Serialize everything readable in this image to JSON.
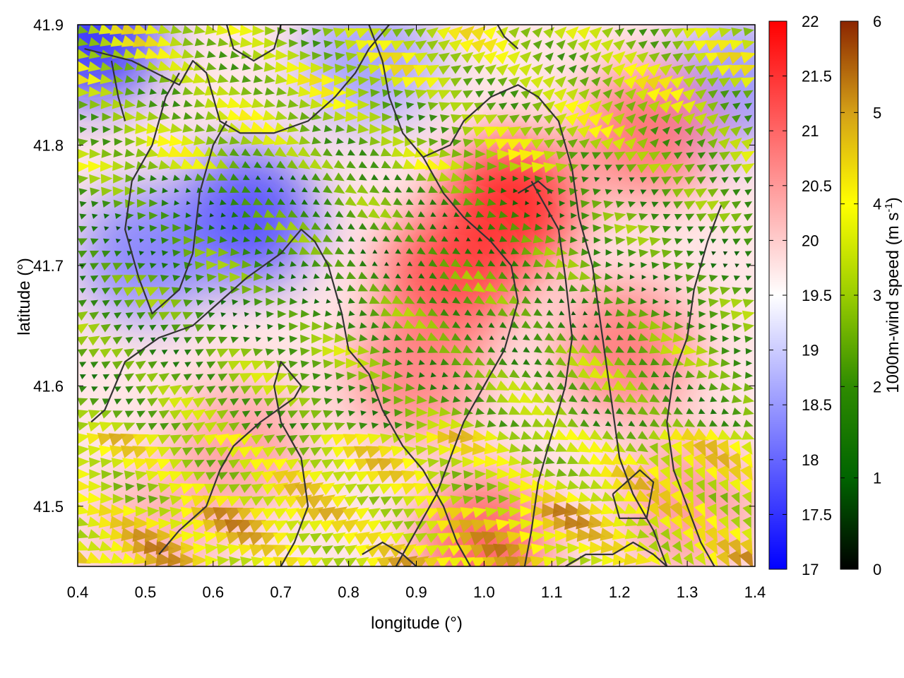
{
  "chart_data": {
    "type": "heatmap",
    "title": "",
    "xlabel": "longitude (°)",
    "ylabel": "latitude (°)",
    "xlim": [
      0.4,
      1.4
    ],
    "ylim": [
      41.45,
      41.9
    ],
    "x_ticks": [
      0.4,
      0.5,
      0.6,
      0.7,
      0.8,
      0.9,
      1.0,
      1.1,
      1.2,
      1.3,
      1.4
    ],
    "x_tick_labels": [
      "0.4",
      "0.5",
      "0.6",
      "0.7",
      "0.8",
      "0.9",
      "1.0",
      "1.1",
      "1.2",
      "1.3",
      "1.4"
    ],
    "y_ticks": [
      41.5,
      41.6,
      41.7,
      41.8,
      41.9
    ],
    "y_tick_labels": [
      "41.5",
      "41.6",
      "41.7",
      "41.8",
      "41.9"
    ],
    "grid": false,
    "temperature_colorbar": {
      "range": [
        17,
        22
      ],
      "ticks": [
        17,
        17.5,
        18,
        18.5,
        19,
        19.5,
        20,
        20.5,
        21,
        21.5,
        22
      ],
      "tick_labels": [
        "17",
        "17.5",
        "18",
        "18.5",
        "19",
        "19.5",
        "20",
        "20.5",
        "21",
        "21.5",
        "22"
      ],
      "colors": [
        "#0000ff",
        "#ffffff",
        "#ff0000"
      ],
      "label": ""
    },
    "wind_colorbar": {
      "range": [
        0,
        6
      ],
      "ticks": [
        0,
        1,
        2,
        3,
        4,
        5,
        6
      ],
      "tick_labels": [
        "0",
        "1",
        "2",
        "3",
        "4",
        "5",
        "6"
      ],
      "colors": [
        "#000000",
        "#006400",
        "#2e8b00",
        "#9acd00",
        "#ffff00",
        "#d4a017",
        "#8b2500"
      ],
      "label": "1000m-wind speed (m s",
      "label_superscript": "-1",
      "label_suffix": ")"
    },
    "temperature_hotspots": [
      {
        "lon": 0.42,
        "lat": 41.89,
        "value": 17.3
      },
      {
        "lon": 0.65,
        "lat": 41.74,
        "value": 17.6
      },
      {
        "lon": 0.5,
        "lat": 41.71,
        "value": 18.2
      },
      {
        "lon": 0.83,
        "lat": 41.87,
        "value": 18.5
      },
      {
        "lon": 1.37,
        "lat": 41.85,
        "value": 18.4
      },
      {
        "lon": 1.04,
        "lat": 41.75,
        "value": 21.9
      },
      {
        "lon": 0.95,
        "lat": 41.69,
        "value": 21.5
      },
      {
        "lon": 1.24,
        "lat": 41.81,
        "value": 21.0
      },
      {
        "lon": 1.21,
        "lat": 41.63,
        "value": 20.9
      },
      {
        "lon": 0.9,
        "lat": 41.61,
        "value": 20.8
      },
      {
        "lon": 0.64,
        "lat": 41.55,
        "value": 20.5
      },
      {
        "lon": 1.0,
        "lat": 41.47,
        "value": 21.2
      },
      {
        "lon": 0.52,
        "lat": 41.48,
        "value": 20.3
      },
      {
        "lon": 1.3,
        "lat": 41.5,
        "value": 20.6
      }
    ],
    "wind_bands": [
      {
        "lat_from": 41.45,
        "lat_to": 41.5,
        "speed": 4.1
      },
      {
        "lat_from": 41.5,
        "lat_to": 41.56,
        "speed": 3.6
      },
      {
        "lat_from": 41.56,
        "lat_to": 41.63,
        "speed": 2.4
      },
      {
        "lat_from": 41.63,
        "lat_to": 41.7,
        "speed": 2.0
      },
      {
        "lat_from": 41.7,
        "lat_to": 41.78,
        "speed": 1.9
      },
      {
        "lat_from": 41.78,
        "lat_to": 41.85,
        "speed": 2.9
      },
      {
        "lat_from": 41.85,
        "lat_to": 41.9,
        "speed": 3.2
      }
    ],
    "contours": [
      [
        [
          0.41,
          41.88
        ],
        [
          0.48,
          41.87
        ],
        [
          0.55,
          41.85
        ],
        [
          0.57,
          41.87
        ],
        [
          0.59,
          41.86
        ],
        [
          0.61,
          41.82
        ],
        [
          0.64,
          41.81
        ],
        [
          0.69,
          41.81
        ],
        [
          0.74,
          41.82
        ],
        [
          0.78,
          41.84
        ],
        [
          0.81,
          41.86
        ],
        [
          0.83,
          41.88
        ],
        [
          0.86,
          41.9
        ]
      ],
      [
        [
          0.55,
          41.86
        ],
        [
          0.53,
          41.84
        ],
        [
          0.51,
          41.8
        ],
        [
          0.48,
          41.77
        ],
        [
          0.47,
          41.73
        ],
        [
          0.49,
          41.69
        ],
        [
          0.51,
          41.66
        ],
        [
          0.55,
          41.68
        ],
        [
          0.57,
          41.71
        ],
        [
          0.58,
          41.76
        ],
        [
          0.6,
          41.8
        ],
        [
          0.62,
          41.82
        ]
      ],
      [
        [
          0.42,
          41.57
        ],
        [
          0.44,
          41.58
        ],
        [
          0.47,
          41.62
        ],
        [
          0.52,
          41.64
        ],
        [
          0.57,
          41.65
        ],
        [
          0.61,
          41.67
        ],
        [
          0.65,
          41.69
        ],
        [
          0.7,
          41.71
        ],
        [
          0.73,
          41.73
        ],
        [
          0.75,
          41.72
        ],
        [
          0.77,
          41.7
        ],
        [
          0.79,
          41.66
        ],
        [
          0.8,
          41.63
        ],
        [
          0.83,
          41.61
        ],
        [
          0.85,
          41.58
        ],
        [
          0.88,
          41.55
        ],
        [
          0.91,
          41.53
        ],
        [
          0.94,
          41.5
        ],
        [
          0.96,
          41.47
        ],
        [
          0.98,
          41.45
        ]
      ],
      [
        [
          0.52,
          41.46
        ],
        [
          0.55,
          41.48
        ],
        [
          0.59,
          41.5
        ],
        [
          0.61,
          41.53
        ],
        [
          0.63,
          41.55
        ],
        [
          0.67,
          41.57
        ],
        [
          0.72,
          41.59
        ],
        [
          0.73,
          41.6
        ],
        [
          0.7,
          41.62
        ],
        [
          0.69,
          41.6
        ],
        [
          0.7,
          41.57
        ],
        [
          0.73,
          41.54
        ],
        [
          0.74,
          41.5
        ],
        [
          0.72,
          41.47
        ],
        [
          0.7,
          41.45
        ]
      ],
      [
        [
          0.83,
          41.9
        ],
        [
          0.85,
          41.87
        ],
        [
          0.86,
          41.84
        ],
        [
          0.88,
          41.81
        ],
        [
          0.91,
          41.79
        ],
        [
          0.95,
          41.8
        ],
        [
          0.97,
          41.82
        ],
        [
          1.01,
          41.84
        ],
        [
          1.05,
          41.85
        ],
        [
          1.08,
          41.84
        ],
        [
          1.11,
          41.82
        ],
        [
          1.13,
          41.78
        ],
        [
          1.14,
          41.74
        ],
        [
          1.16,
          41.7
        ],
        [
          1.17,
          41.66
        ],
        [
          1.18,
          41.62
        ],
        [
          1.19,
          41.58
        ],
        [
          1.2,
          41.54
        ],
        [
          1.22,
          41.51
        ],
        [
          1.25,
          41.48
        ],
        [
          1.27,
          41.45
        ]
      ],
      [
        [
          0.91,
          41.79
        ],
        [
          0.94,
          41.76
        ],
        [
          0.97,
          41.74
        ],
        [
          1.01,
          41.72
        ],
        [
          1.04,
          41.7
        ],
        [
          1.05,
          41.67
        ],
        [
          1.03,
          41.63
        ],
        [
          1.0,
          41.6
        ],
        [
          0.97,
          41.57
        ],
        [
          0.95,
          41.54
        ],
        [
          0.93,
          41.51
        ],
        [
          0.9,
          41.48
        ],
        [
          0.87,
          41.45
        ]
      ],
      [
        [
          1.07,
          41.77
        ],
        [
          1.09,
          41.75
        ],
        [
          1.11,
          41.73
        ],
        [
          1.12,
          41.69
        ],
        [
          1.13,
          41.64
        ],
        [
          1.12,
          41.6
        ],
        [
          1.1,
          41.56
        ],
        [
          1.08,
          41.52
        ],
        [
          1.07,
          41.48
        ],
        [
          1.06,
          41.45
        ]
      ],
      [
        [
          1.35,
          41.75
        ],
        [
          1.33,
          41.72
        ],
        [
          1.31,
          41.68
        ],
        [
          1.3,
          41.64
        ],
        [
          1.28,
          41.61
        ],
        [
          1.27,
          41.57
        ],
        [
          1.28,
          41.53
        ],
        [
          1.3,
          41.5
        ],
        [
          1.32,
          41.47
        ],
        [
          1.34,
          41.45
        ]
      ],
      [
        [
          1.19,
          41.51
        ],
        [
          1.23,
          41.53
        ],
        [
          1.25,
          41.52
        ],
        [
          1.24,
          41.49
        ],
        [
          1.2,
          41.49
        ],
        [
          1.19,
          41.51
        ]
      ],
      [
        [
          0.45,
          41.87
        ],
        [
          0.46,
          41.84
        ],
        [
          0.47,
          41.82
        ]
      ],
      [
        [
          0.62,
          41.9
        ],
        [
          0.63,
          41.88
        ],
        [
          0.66,
          41.87
        ],
        [
          0.69,
          41.88
        ],
        [
          0.7,
          41.9
        ]
      ],
      [
        [
          1.02,
          41.9
        ],
        [
          1.03,
          41.89
        ],
        [
          1.05,
          41.88
        ]
      ],
      [
        [
          1.05,
          41.76
        ],
        [
          1.08,
          41.77
        ],
        [
          1.1,
          41.76
        ]
      ],
      [
        [
          0.82,
          41.46
        ],
        [
          0.85,
          41.47
        ],
        [
          0.88,
          41.46
        ],
        [
          0.9,
          41.45
        ]
      ],
      [
        [
          1.12,
          41.45
        ],
        [
          1.15,
          41.46
        ],
        [
          1.19,
          41.46
        ],
        [
          1.22,
          41.47
        ],
        [
          1.25,
          41.46
        ],
        [
          1.27,
          41.45
        ]
      ]
    ]
  }
}
